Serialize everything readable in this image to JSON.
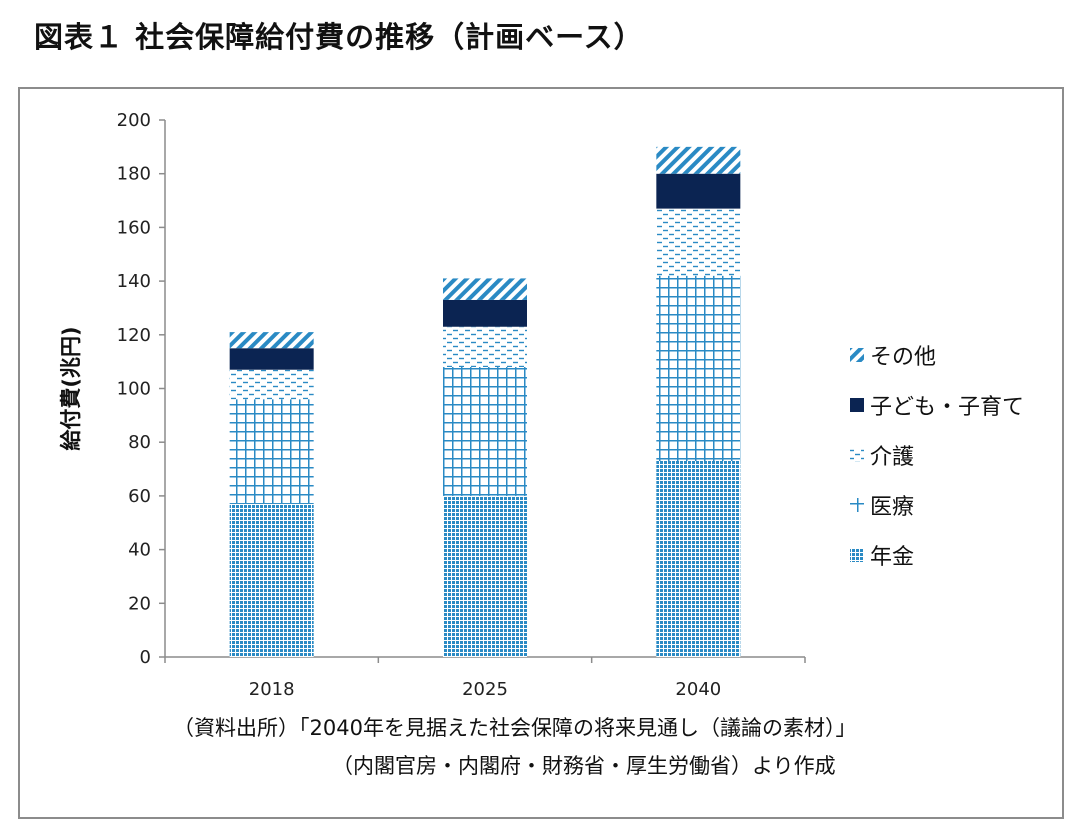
{
  "title": "図表１ 社会保障給付費の推移（計画ベース）",
  "source": {
    "line1": "（資料出所）「2040年を見据えた社会保障の将来見通し（議論の素材）」",
    "line2": "（内閣官房・内閣府・財務省・厚生労働省）より作成"
  },
  "colors": {
    "pattern": "#2a8ac4",
    "dark": "#0b2452",
    "frame": "#8c8c8c"
  },
  "chart_data": {
    "type": "bar",
    "stacked": true,
    "categories": [
      "2018",
      "2025",
      "2040"
    ],
    "ylabel": "給付費(兆円)",
    "ylim": [
      0,
      200
    ],
    "yticks": [
      0,
      20,
      40,
      60,
      80,
      100,
      120,
      140,
      160,
      180,
      200
    ],
    "grid": false,
    "legend_position": "right",
    "series": [
      {
        "name": "年金",
        "values": [
          57,
          60,
          73
        ],
        "pattern": "dots"
      },
      {
        "name": "医療",
        "values": [
          39,
          48,
          69
        ],
        "pattern": "grid"
      },
      {
        "name": "介護",
        "values": [
          11,
          15,
          25
        ],
        "pattern": "dashes"
      },
      {
        "name": "子ども・子育て",
        "values": [
          8,
          10,
          13
        ],
        "pattern": "solid-dark"
      },
      {
        "name": "その他",
        "values": [
          6,
          8,
          10
        ],
        "pattern": "diagonal"
      }
    ]
  }
}
